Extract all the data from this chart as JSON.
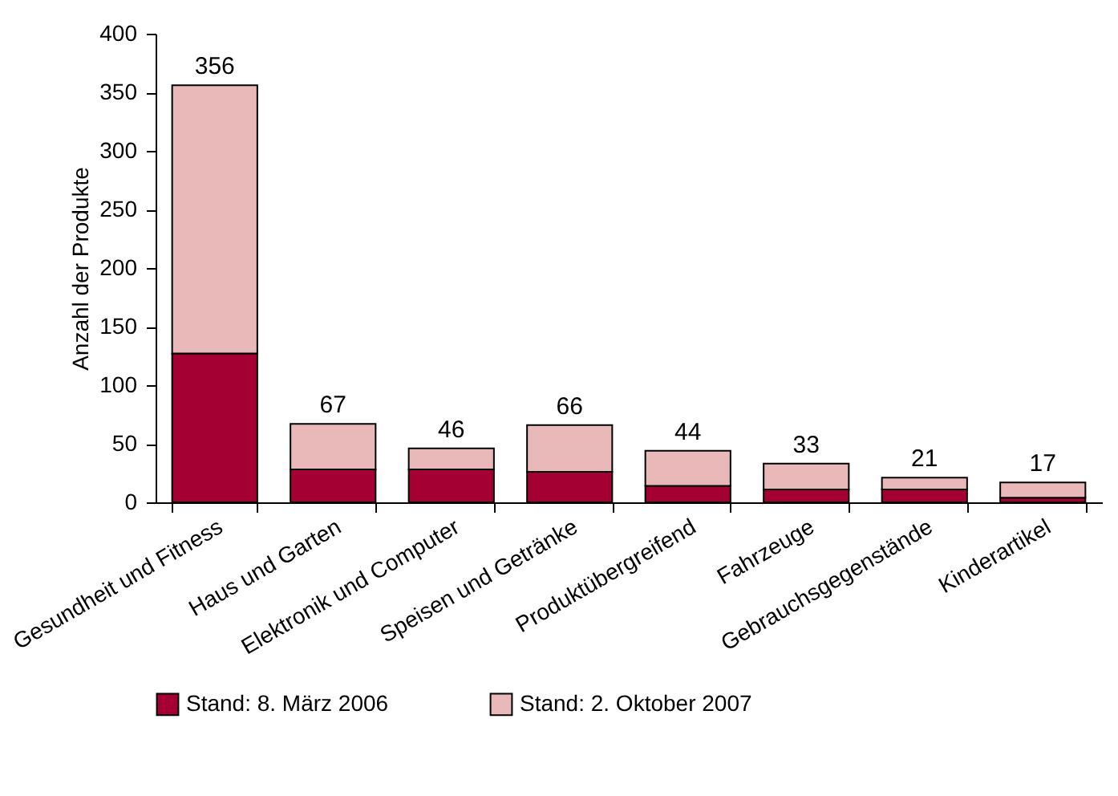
{
  "chart_data": {
    "type": "bar",
    "ylabel": "Anzahl der Produkte",
    "categories": [
      "Gesundheit und Fitness",
      "Haus und Garten",
      "Elektronik und Computer",
      "Speisen und Getränke",
      "Produktübergreifend",
      "Fahrzeuge",
      "Gebrauchsgegenstände",
      "Kinderartikel"
    ],
    "series": [
      {
        "name": "Stand: 8. März 2006",
        "color": "#a50034",
        "values": [
          127,
          28,
          28,
          26,
          14,
          11,
          11,
          4
        ]
      },
      {
        "name": "Stand: 2. Oktober 2007",
        "color": "#e8b9b8",
        "values": [
          229,
          39,
          18,
          40,
          30,
          22,
          10,
          13
        ]
      }
    ],
    "stacked": true,
    "totals": [
      "356",
      "67",
      "46",
      "66",
      "44",
      "33",
      "21",
      "17"
    ],
    "ylim": [
      0,
      400
    ],
    "yticks": [
      0,
      50,
      100,
      150,
      200,
      250,
      300,
      350,
      400
    ],
    "grid": false,
    "legend": "bottom"
  }
}
